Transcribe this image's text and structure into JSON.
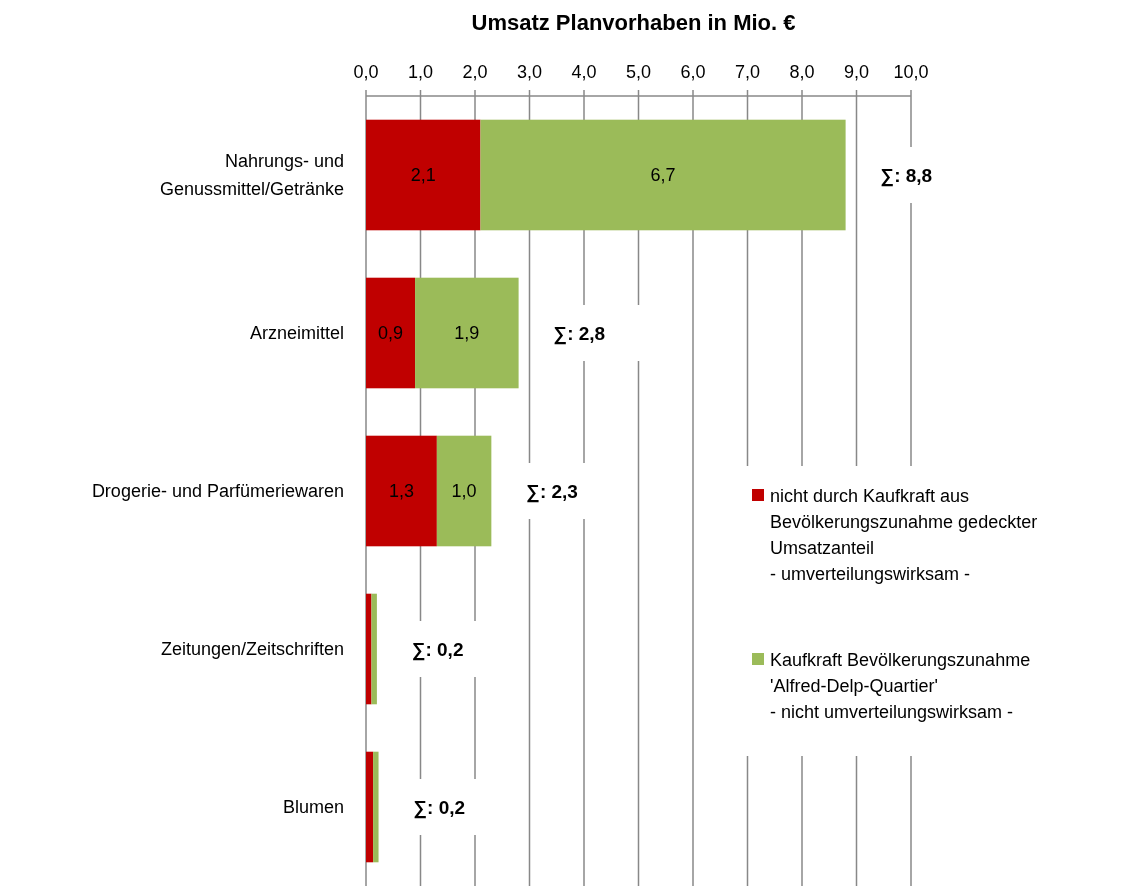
{
  "chart_data": {
    "type": "bar",
    "orientation": "horizontal",
    "stacked": true,
    "title": "Umsatz Planvorhaben in Mio. €",
    "categories": [
      "Nahrungs- und\nGenussmittel/Getränke",
      "Arzneimittel",
      "Drogerie- und Parfümeriewaren",
      "Zeitungen/Zeitschriften",
      "Blumen"
    ],
    "series": [
      {
        "name": "nicht durch Kaufkraft aus\nBevölkerungszunahme gedeckter\nUmsatzanteil\n- umverteilungswirksam -",
        "color": "#c00000",
        "values": [
          2.1,
          0.9,
          1.3,
          0.1,
          0.13
        ],
        "value_labels": [
          "2,1",
          "0,9",
          "1,3",
          null,
          null
        ]
      },
      {
        "name": "Kaufkraft Bevölkerungszunahme\n'Alfred-Delp-Quartier'\n- nicht umverteilungswirksam -",
        "color": "#9bbb59",
        "values": [
          6.7,
          1.9,
          1.0,
          0.1,
          0.1
        ],
        "value_labels": [
          "6,7",
          "1,9",
          "1,0",
          null,
          null
        ]
      }
    ],
    "totals": [
      "∑: 8,8",
      "∑: 2,8",
      "∑: 2,3",
      "∑: 0,2",
      "∑: 0,2"
    ],
    "xlim": [
      0,
      10
    ],
    "xticks": [
      {
        "value": 0,
        "label": "0,0"
      },
      {
        "value": 1,
        "label": "1,0"
      },
      {
        "value": 2,
        "label": "2,0"
      },
      {
        "value": 3,
        "label": "3,0"
      },
      {
        "value": 4,
        "label": "4,0"
      },
      {
        "value": 5,
        "label": "5,0"
      },
      {
        "value": 6,
        "label": "6,0"
      },
      {
        "value": 7,
        "label": "7,0"
      },
      {
        "value": 8,
        "label": "8,0"
      },
      {
        "value": 9,
        "label": "9,0"
      },
      {
        "value": 10,
        "label": "10,0"
      }
    ],
    "grid": "x",
    "legend": "right"
  }
}
